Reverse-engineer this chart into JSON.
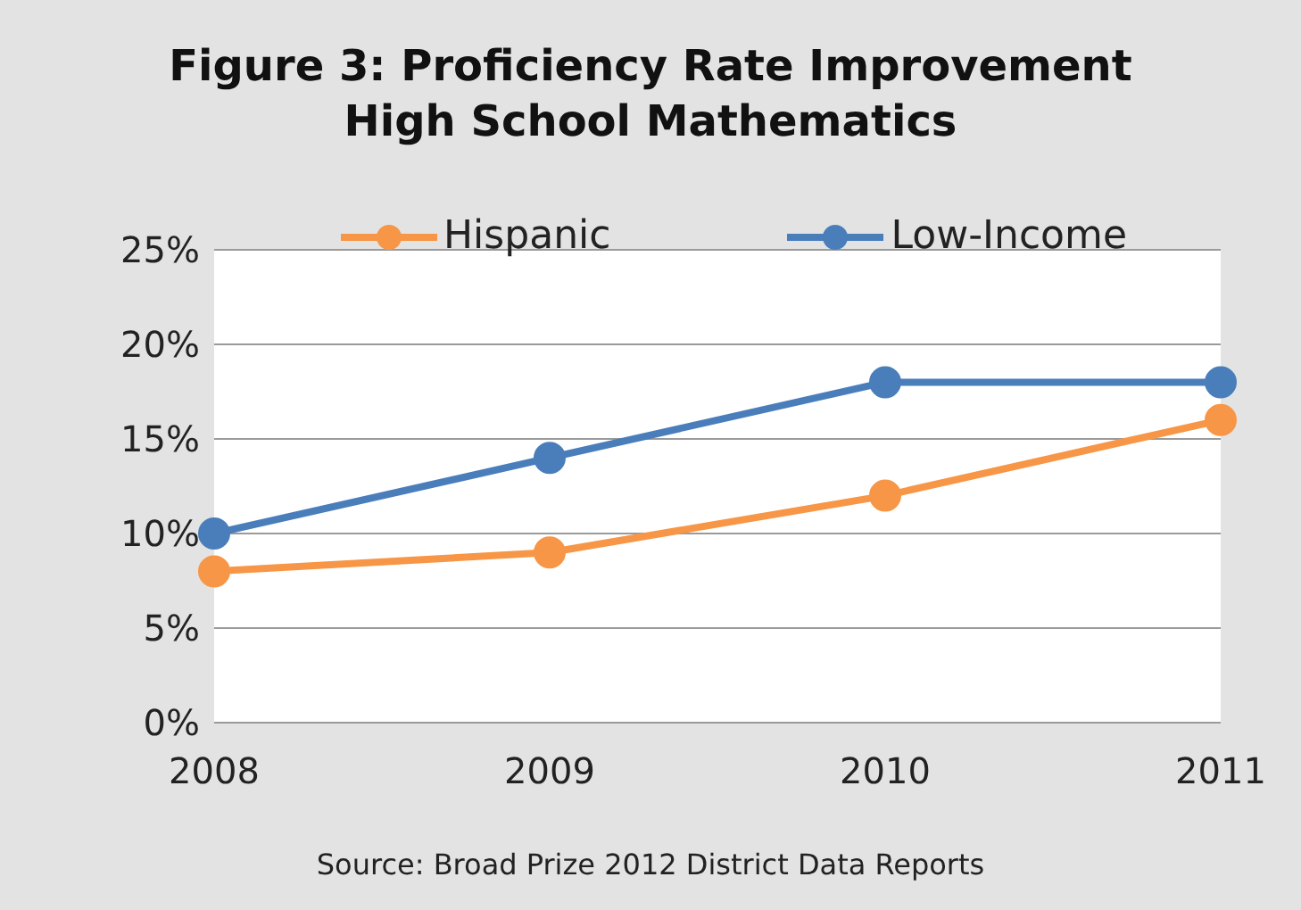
{
  "chart_data": {
    "type": "line",
    "title": "Figure 3: Proficiency Rate Improvement\nHigh School Mathematics",
    "categories": [
      "2008",
      "2009",
      "2010",
      "2011"
    ],
    "series": [
      {
        "name": "Hispanic",
        "color": "#f79646",
        "values": [
          8,
          9,
          12,
          16
        ]
      },
      {
        "name": "Low-Income",
        "color": "#4a7ebb",
        "values": [
          10,
          14,
          18,
          18
        ]
      }
    ],
    "ylim": [
      0,
      25
    ],
    "yticks": [
      {
        "value": 0,
        "label": "0%"
      },
      {
        "value": 5,
        "label": "5%"
      },
      {
        "value": 10,
        "label": "10%"
      },
      {
        "value": 15,
        "label": "15%"
      },
      {
        "value": 20,
        "label": "20%"
      },
      {
        "value": 25,
        "label": "25%"
      }
    ],
    "grid": "y",
    "legend": "top",
    "marker": "circle",
    "line_style": "solid",
    "annotations": [
      "Source: Broad Prize 2012 District Data Reports"
    ]
  }
}
